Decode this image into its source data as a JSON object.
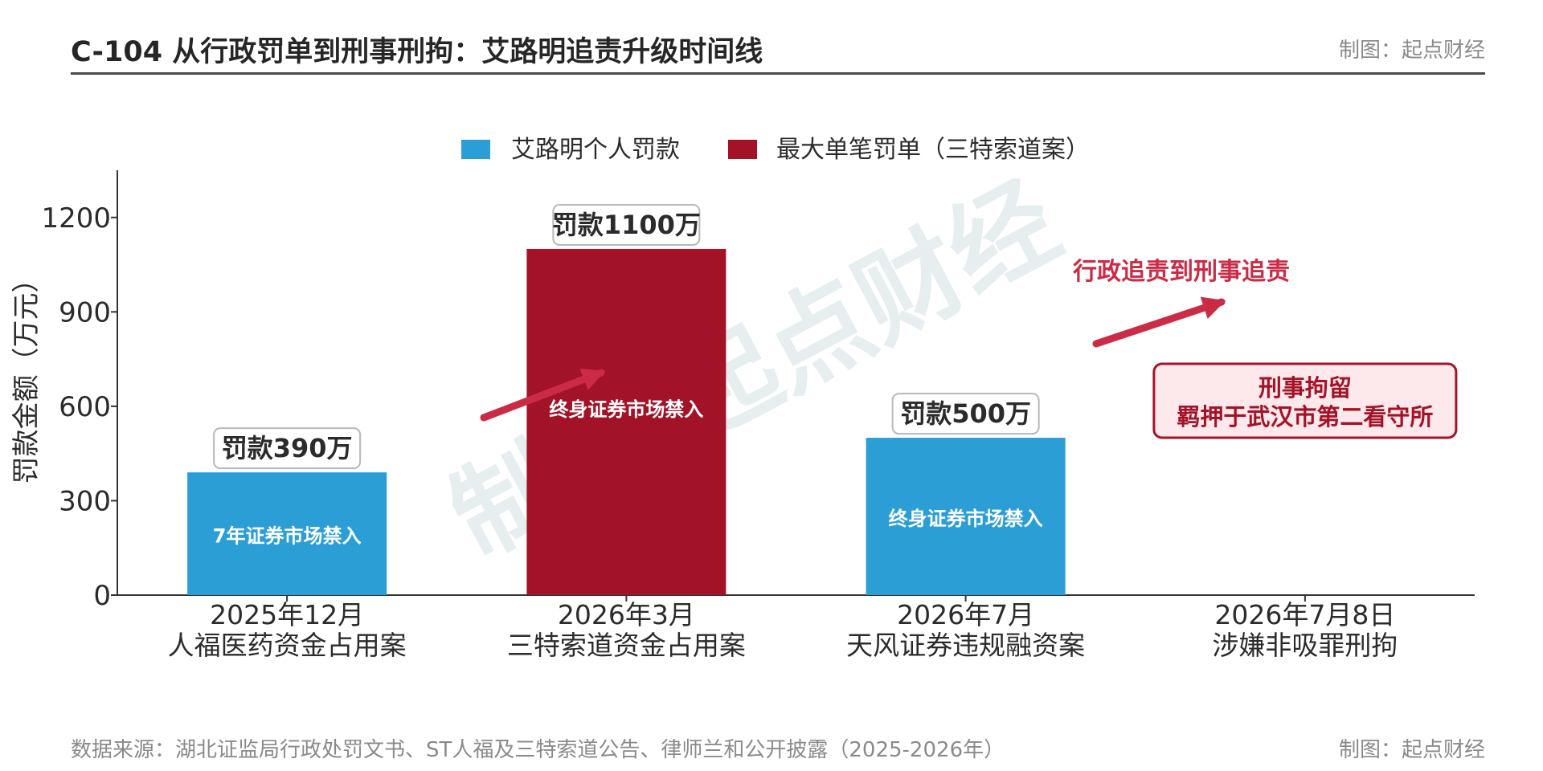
{
  "header": {
    "title": "C-104 从行政罚单到刑事刑拘：艾路明追责升级时间线",
    "credit": "制图：起点财经"
  },
  "footer": {
    "source": "数据来源：湖北证监局行政处罚文书、ST人福及三特索道公告、律师兰和公开披露（2025-2026年）",
    "credit": "制图：起点财经"
  },
  "watermark": "制图·起点财经",
  "colors": {
    "blue": "#2b9ed6",
    "red": "#a31328",
    "accent_red": "#cc2b45",
    "axis": "#333333"
  },
  "chart_data": {
    "type": "bar",
    "ylabel": "罚款金额（万元）",
    "ylim": [
      0,
      1350
    ],
    "yticks": [
      0,
      300,
      600,
      900,
      1200
    ],
    "legend": {
      "placement": "top-center",
      "entries": [
        {
          "label": "艾路明个人罚款",
          "color": "#2b9ed6"
        },
        {
          "label": "最大单笔罚单（三特索道案）",
          "color": "#a31328"
        }
      ]
    },
    "categories": [
      {
        "date": "2025年12月",
        "name": "人福医药资金占用案"
      },
      {
        "date": "2026年3月",
        "name": "三特索道资金占用案"
      },
      {
        "date": "2026年7月",
        "name": "天风证券违规融资案"
      },
      {
        "date": "2026年7月8日",
        "name": "涉嫌非吸罪刑拘"
      }
    ],
    "bars": [
      {
        "category_index": 0,
        "value": 390,
        "series": "艾路明个人罚款",
        "color": "#2b9ed6",
        "label": "罚款390万",
        "inner_label": "7年证券市场禁入"
      },
      {
        "category_index": 1,
        "value": 1100,
        "series": "最大单笔罚单（三特索道案）",
        "color": "#a31328",
        "label": "罚款1100万",
        "inner_label": "终身证券市场禁入"
      },
      {
        "category_index": 2,
        "value": 500,
        "series": "艾路明个人罚款",
        "color": "#2b9ed6",
        "label": "罚款500万",
        "inner_label": "终身证券市场禁入"
      }
    ],
    "annotations": {
      "escalation_text": "行政追责到刑事追责",
      "detention_box": [
        "刑事拘留",
        "羁押于武汉市第二看守所"
      ]
    }
  }
}
